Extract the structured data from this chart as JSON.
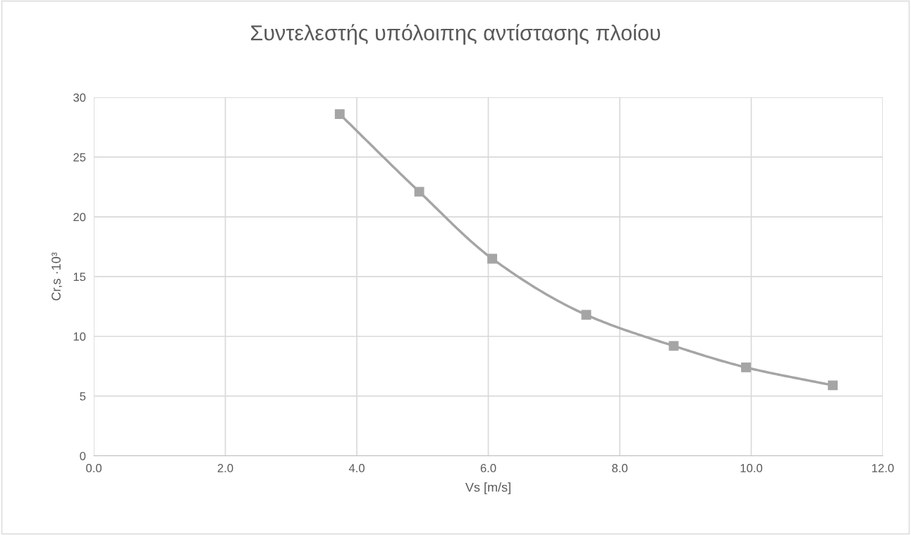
{
  "chart_data": {
    "type": "line",
    "title": "Συντελεστής υπόλοιπης αντίστασης πλοίου",
    "xlabel": "Vs [m/s]",
    "ylabel": "Cr,s ·10³",
    "x": [
      3.74,
      4.95,
      6.06,
      7.49,
      8.82,
      9.92,
      11.24
    ],
    "series": [
      {
        "color": "#a5a5a5",
        "values": [
          28.6,
          22.1,
          16.5,
          11.8,
          9.2,
          7.4,
          5.9
        ]
      }
    ],
    "xlim": [
      0,
      12
    ],
    "xticks": [
      {
        "value": 0,
        "label": "0.0"
      },
      {
        "value": 2,
        "label": "2.0"
      },
      {
        "value": 4,
        "label": "4.0"
      },
      {
        "value": 6,
        "label": "6.0"
      },
      {
        "value": 8,
        "label": "8.0"
      },
      {
        "value": 10,
        "label": "10.0"
      },
      {
        "value": 12,
        "label": "12.0"
      }
    ],
    "ylim": [
      0,
      30
    ],
    "yticks": [
      0,
      5,
      10,
      15,
      20,
      25,
      30
    ],
    "grid": true,
    "marker": "square",
    "line_style": "solid"
  }
}
